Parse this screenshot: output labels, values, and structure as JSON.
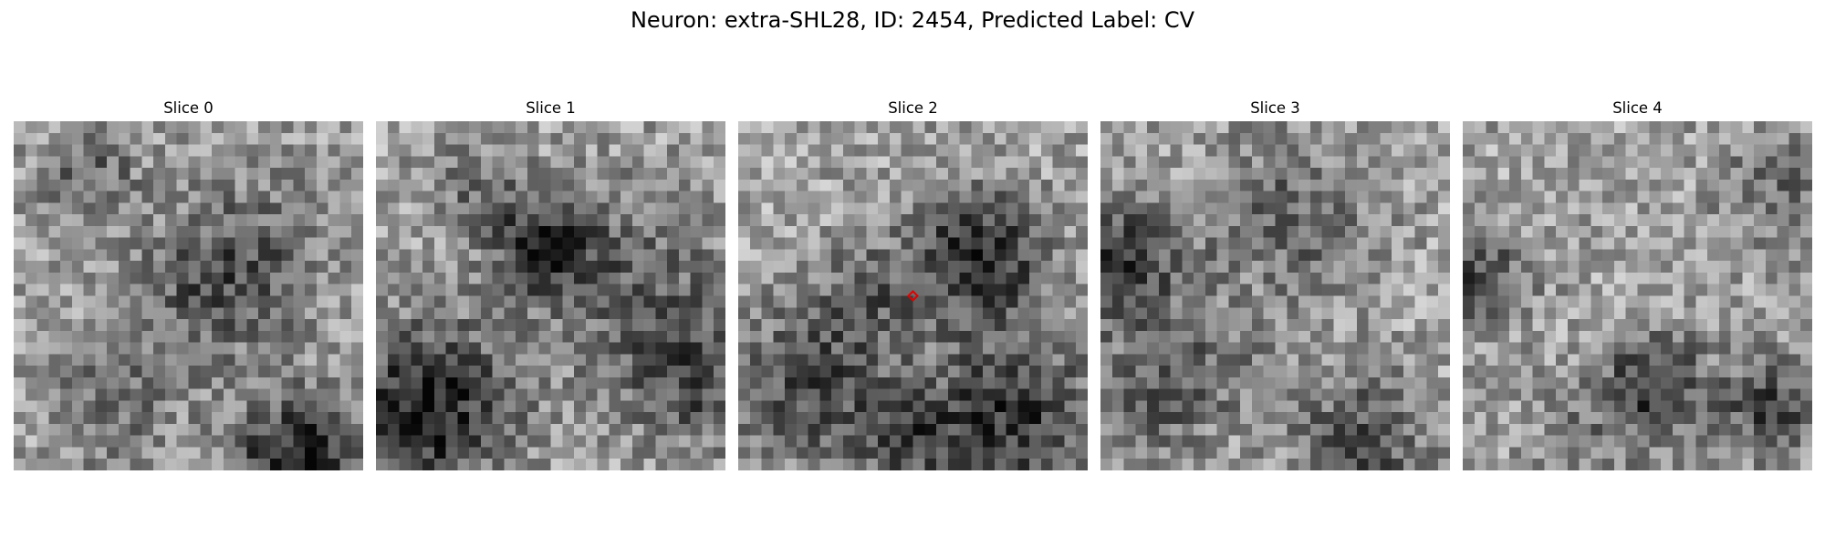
{
  "figure": {
    "title": "Neuron: extra-SHL28, ID: 2454, Predicted Label: CV"
  },
  "panels": [
    {
      "title": "Slice 0"
    },
    {
      "title": "Slice 1"
    },
    {
      "title": "Slice 2"
    },
    {
      "title": "Slice 3"
    },
    {
      "title": "Slice 4"
    }
  ],
  "image": {
    "grid_cells": 30,
    "colormap": "gray",
    "marker_slice": 2,
    "marker_color": "#e00000",
    "marker_shape": "diamond-icon"
  }
}
